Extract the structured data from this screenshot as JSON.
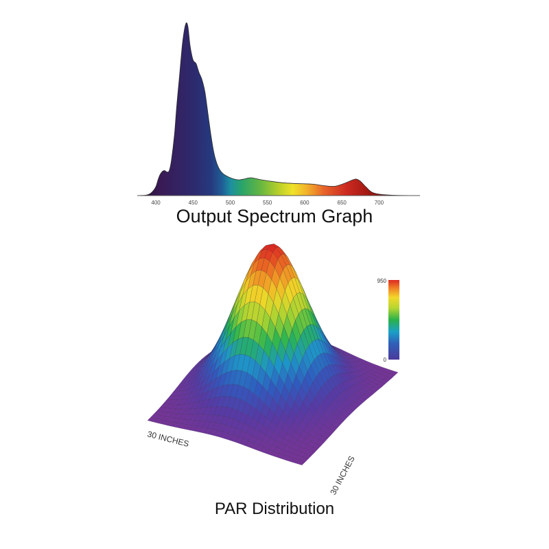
{
  "chart_data": [
    {
      "type": "area",
      "title": "Output Spectrum Graph",
      "x_ticks": [
        400,
        450,
        500,
        550,
        600,
        650,
        700
      ],
      "xlim": [
        375,
        755
      ],
      "x": [
        375,
        385,
        390,
        395,
        400,
        403,
        406,
        409,
        412,
        415,
        418,
        421,
        425,
        428,
        432,
        436,
        440,
        443,
        446,
        450,
        454,
        458,
        462,
        466,
        470,
        474,
        478,
        482,
        486,
        490,
        495,
        500,
        506,
        512,
        520,
        528,
        540,
        555,
        570,
        585,
        600,
        612,
        625,
        640,
        652,
        660,
        666,
        670,
        675,
        682,
        690,
        700,
        720,
        755
      ],
      "y": [
        0,
        1,
        3,
        10,
        25,
        45,
        60,
        68,
        70,
        66,
        70,
        100,
        170,
        250,
        340,
        430,
        480,
        475,
        420,
        380,
        370,
        345,
        325,
        290,
        230,
        170,
        120,
        90,
        72,
        62,
        55,
        50,
        46,
        44,
        47,
        50,
        45,
        40,
        36,
        34,
        33,
        32,
        28,
        26,
        33,
        40,
        45,
        46,
        40,
        25,
        10,
        4,
        1,
        0
      ],
      "ylim": [
        0,
        500
      ]
    },
    {
      "type": "surface",
      "title": "PAR Distribution",
      "x_label": "30 INCHES",
      "y_label": "30 INCHES",
      "colorbar": {
        "min_label": "0",
        "max_label": "950",
        "min": 0,
        "max": 950
      },
      "peak_value": 950
    }
  ]
}
